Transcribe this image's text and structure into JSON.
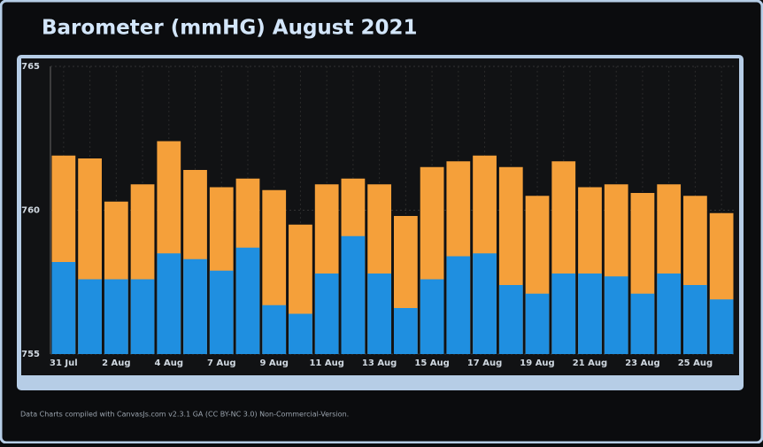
{
  "chart_data": {
    "type": "bar",
    "title": "Barometer (mmHG) August 2021",
    "footer": "Data Charts compiled with CanvasJs.com v2.3.1 GA (CC BY-NC 3.0) Non-Commercial-Version.",
    "categories": [
      "31 Jul",
      null,
      "2 Aug",
      null,
      "4 Aug",
      null,
      "7 Aug",
      null,
      "9 Aug",
      null,
      "11 Aug",
      null,
      "13 Aug",
      null,
      "15 Aug",
      null,
      "17 Aug",
      null,
      "19 Aug",
      null,
      "21 Aug",
      null,
      "23 Aug",
      null,
      "25 Aug",
      null
    ],
    "series": [
      {
        "color": "#f5a03a",
        "values": [
          761.9,
          761.8,
          760.3,
          760.9,
          762.4,
          761.4,
          760.8,
          761.1,
          760.7,
          759.5,
          760.9,
          761.1,
          760.9,
          759.8,
          761.5,
          761.7,
          761.9,
          761.5,
          760.5,
          761.7,
          760.8,
          760.9,
          760.6,
          760.9,
          760.5,
          759.9
        ]
      },
      {
        "color": "#1f8fe0",
        "values": [
          758.2,
          757.6,
          757.6,
          757.6,
          758.5,
          758.3,
          757.9,
          758.7,
          756.7,
          756.4,
          757.8,
          759.1,
          757.8,
          756.6,
          757.6,
          758.4,
          758.5,
          757.4,
          757.1,
          757.8,
          757.8,
          757.7,
          757.1,
          757.8,
          757.4,
          756.9
        ]
      }
    ],
    "ylim": [
      755,
      765
    ],
    "yticks": [
      755,
      760,
      765
    ],
    "grid": true
  }
}
